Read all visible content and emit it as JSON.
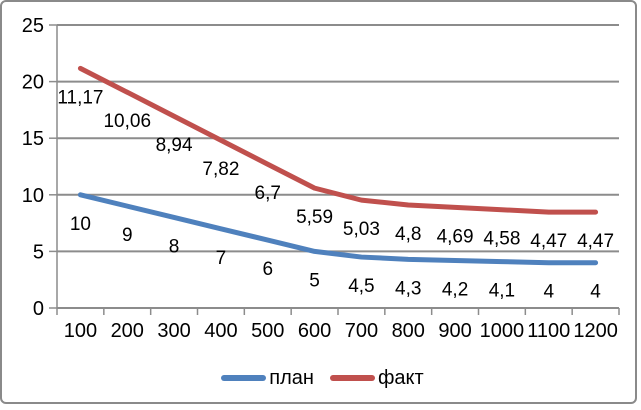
{
  "chart_data": {
    "type": "line",
    "stacked": true,
    "title": "",
    "xlabel": "",
    "ylabel": "",
    "x": [
      100,
      200,
      300,
      400,
      500,
      600,
      700,
      800,
      900,
      1000,
      1100,
      1200
    ],
    "series": [
      {
        "name": "план",
        "color": "#4F81BD",
        "values": [
          10,
          9,
          8,
          7,
          6,
          5,
          4.5,
          4.3,
          4.2,
          4.1,
          4,
          4
        ],
        "point_labels": [
          "10",
          "9",
          "8",
          "7",
          "6",
          "5",
          "4,5",
          "4,3",
          "4,2",
          "4,1",
          "4",
          "4"
        ]
      },
      {
        "name": "факт",
        "color": "#C0504D",
        "values": [
          11.17,
          10.06,
          8.94,
          7.82,
          6.7,
          5.59,
          5.03,
          4.8,
          4.69,
          4.58,
          4.47,
          4.47
        ],
        "point_labels": [
          "11,17",
          "10,06",
          "8,94",
          "7,82",
          "6,7",
          "5,59",
          "5,03",
          "4,8",
          "4,69",
          "4,58",
          "4,47",
          "4,47"
        ]
      }
    ],
    "ylim": [
      0,
      25
    ],
    "y_ticks": [
      0,
      5,
      10,
      15,
      20,
      25
    ],
    "grid": true,
    "grid_color": "#8C8C8C",
    "axis_color": "#8C8C8C",
    "legend_position": "bottom"
  }
}
